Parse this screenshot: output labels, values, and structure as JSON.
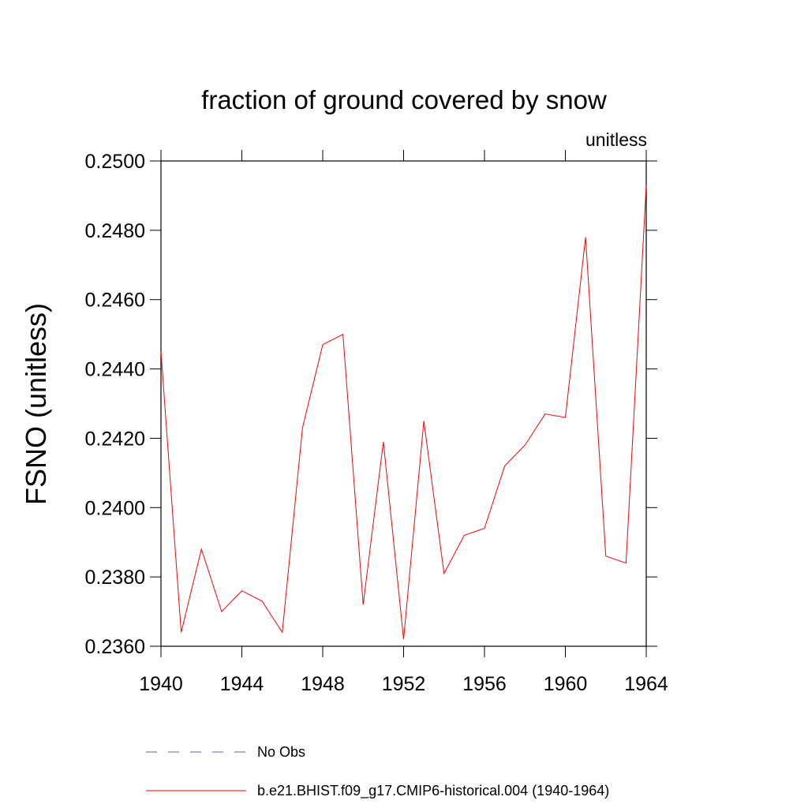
{
  "chart_data": {
    "type": "line",
    "title": "fraction of ground covered by snow",
    "subtitle": "unitless",
    "ylabel": "FSNO  (unitless)",
    "x": [
      1940,
      1941,
      1942,
      1943,
      1944,
      1945,
      1946,
      1947,
      1948,
      1949,
      1950,
      1951,
      1952,
      1953,
      1954,
      1955,
      1956,
      1957,
      1958,
      1959,
      1960,
      1961,
      1962,
      1963,
      1964
    ],
    "series": [
      {
        "name": "b.e21.BHIST.f09_g17.CMIP6-historical.004 (1940-1964)",
        "color": "#ff0000",
        "values": [
          0.2445,
          0.2364,
          0.2388,
          0.237,
          0.2376,
          0.2373,
          0.2364,
          0.2423,
          0.2447,
          0.245,
          0.2372,
          0.2419,
          0.2362,
          0.2425,
          0.2381,
          0.2392,
          0.2394,
          0.2412,
          0.2418,
          0.2427,
          0.2426,
          0.2478,
          0.2386,
          0.2384,
          0.2493
        ]
      }
    ],
    "reference": {
      "name": "No Obs",
      "color": "#6060c0",
      "style": "dashed"
    },
    "xlim": [
      1940,
      1964
    ],
    "xticks": [
      1940,
      1944,
      1948,
      1952,
      1956,
      1960,
      1964
    ],
    "ylim": [
      0.236,
      0.25
    ],
    "yticks": [
      {
        "value": 0.236,
        "label": "0.2360"
      },
      {
        "value": 0.238,
        "label": "0.2380"
      },
      {
        "value": 0.24,
        "label": "0.2400"
      },
      {
        "value": 0.242,
        "label": "0.2420"
      },
      {
        "value": 0.244,
        "label": "0.2440"
      },
      {
        "value": 0.246,
        "label": "0.2460"
      },
      {
        "value": 0.248,
        "label": "0.2480"
      },
      {
        "value": 0.25,
        "label": "0.2500"
      }
    ],
    "grid": false
  }
}
